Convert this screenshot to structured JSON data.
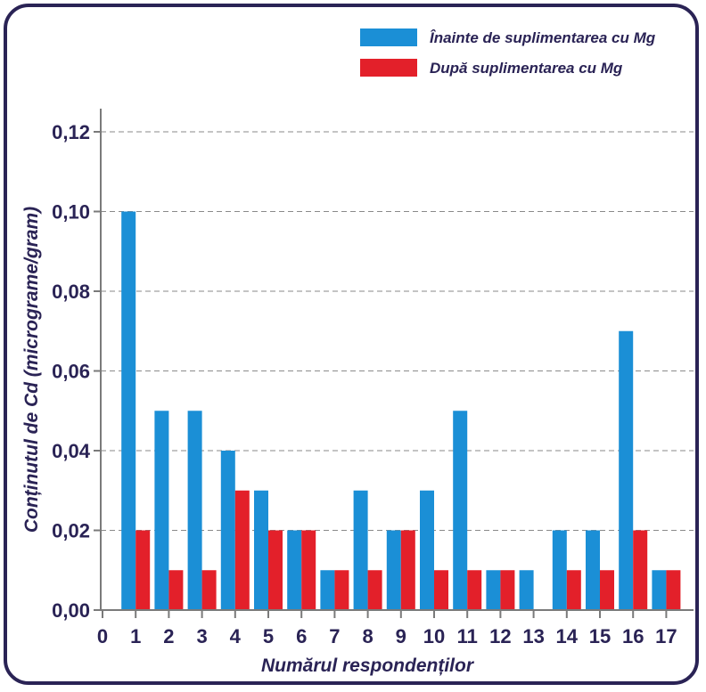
{
  "chart_data": {
    "type": "bar",
    "categories": [
      "0",
      "1",
      "2",
      "3",
      "4",
      "5",
      "6",
      "7",
      "8",
      "9",
      "10",
      "11",
      "12",
      "13",
      "14",
      "15",
      "16",
      "17"
    ],
    "series": [
      {
        "name": "Înainte de suplimentarea cu Mg",
        "color": "#1b8fd6",
        "values": [
          null,
          0.1,
          0.05,
          0.05,
          0.04,
          0.03,
          0.02,
          0.01,
          0.03,
          0.02,
          0.03,
          0.05,
          0.01,
          0.01,
          0.02,
          0.02,
          0.07,
          0.01
        ]
      },
      {
        "name": "După suplimentarea cu Mg",
        "color": "#e3202a",
        "values": [
          null,
          0.02,
          0.01,
          0.01,
          0.03,
          0.02,
          0.02,
          0.01,
          0.01,
          0.02,
          0.01,
          0.01,
          0.01,
          null,
          0.01,
          0.01,
          0.02,
          0.01
        ]
      }
    ],
    "xlabel": "Numărul respondenților",
    "ylabel": "Conținutul de Cd (micrograme/gram)",
    "ylim": [
      0,
      0.12
    ],
    "yticks": [
      "0,00",
      "0,02",
      "0,04",
      "0,06",
      "0,08",
      "0,10",
      "0,12"
    ],
    "grid": true,
    "legend_position": "top-right"
  }
}
